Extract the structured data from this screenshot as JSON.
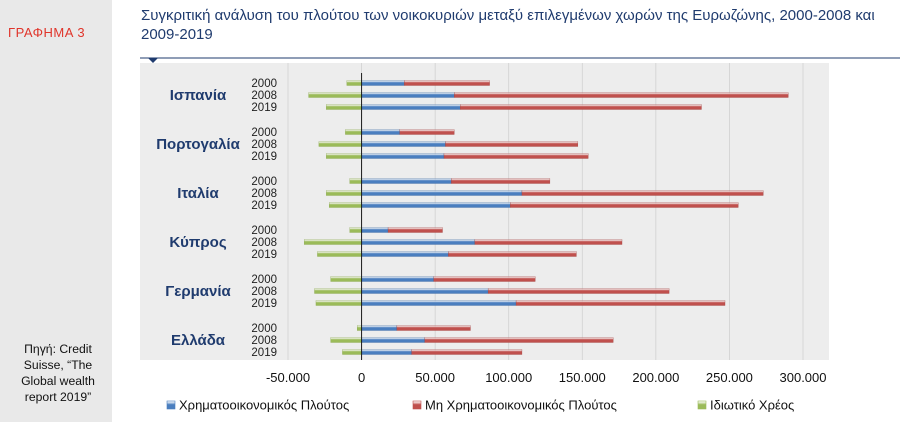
{
  "sidebar": {
    "graph_label": "ΓΡΑΦΗΜΑ 3",
    "source": "Πηγή: Credit Suisse, “The Global wealth report 2019”"
  },
  "chart_data": {
    "type": "bar",
    "orientation": "horizontal",
    "stacked": true,
    "title": "Συγκριτική ανάλυση του πλούτου των νοικοκυριών μεταξύ επιλεγμένων χωρών της Ευρωζώνης, 2000-2008 και 2009-2019",
    "xlim": [
      -50000,
      300000
    ],
    "ticks": [
      -50000,
      0,
      50000,
      100000,
      150000,
      200000,
      250000,
      300000
    ],
    "tick_labels": [
      "-50.000",
      "0",
      "50.000",
      "100.000",
      "150.000",
      "200.000",
      "250.000",
      "300.000"
    ],
    "series": [
      {
        "name": "Χρηματοοικονομικός  Πλούτος",
        "color": "#4a7ebf"
      },
      {
        "name": "Μη Χρηματοοικονομικός  Πλούτος",
        "color": "#c0504d"
      },
      {
        "name": "Ιδιωτικό  Χρέος",
        "color": "#9bbb59"
      }
    ],
    "groups": [
      {
        "country": "Ισπανία",
        "rows": [
          {
            "year": "2000",
            "financial": 29000,
            "non_financial": 58000,
            "debt": -10000
          },
          {
            "year": "2008",
            "financial": 63000,
            "non_financial": 227000,
            "debt": -36000
          },
          {
            "year": "2019",
            "financial": 67000,
            "non_financial": 164000,
            "debt": -24000
          }
        ]
      },
      {
        "country": "Πορτογαλία",
        "rows": [
          {
            "year": "2000",
            "financial": 26000,
            "non_financial": 37000,
            "debt": -11000
          },
          {
            "year": "2008",
            "financial": 57000,
            "non_financial": 90000,
            "debt": -29000
          },
          {
            "year": "2019",
            "financial": 56000,
            "non_financial": 98000,
            "debt": -24000
          }
        ]
      },
      {
        "country": "Ιταλία",
        "rows": [
          {
            "year": "2000",
            "financial": 61000,
            "non_financial": 67000,
            "debt": -8000
          },
          {
            "year": "2008",
            "financial": 109000,
            "non_financial": 164000,
            "debt": -24000
          },
          {
            "year": "2019",
            "financial": 101000,
            "non_financial": 155000,
            "debt": -22000
          }
        ]
      },
      {
        "country": "Κύπρος",
        "rows": [
          {
            "year": "2000",
            "financial": 18000,
            "non_financial": 37000,
            "debt": -8000
          },
          {
            "year": "2008",
            "financial": 77000,
            "non_financial": 100000,
            "debt": -39000
          },
          {
            "year": "2019",
            "financial": 59000,
            "non_financial": 87000,
            "debt": -30000
          }
        ]
      },
      {
        "country": "Γερμανία",
        "rows": [
          {
            "year": "2000",
            "financial": 49000,
            "non_financial": 69000,
            "debt": -21000
          },
          {
            "year": "2008",
            "financial": 86000,
            "non_financial": 123000,
            "debt": -32000
          },
          {
            "year": "2019",
            "financial": 105000,
            "non_financial": 142000,
            "debt": -31000
          }
        ]
      },
      {
        "country": "Ελλάδα",
        "rows": [
          {
            "year": "2000",
            "financial": 24000,
            "non_financial": 50000,
            "debt": -3000
          },
          {
            "year": "2008",
            "financial": 43000,
            "non_financial": 128000,
            "debt": -21000
          },
          {
            "year": "2019",
            "financial": 34000,
            "non_financial": 75000,
            "debt": -13000
          }
        ]
      }
    ]
  }
}
